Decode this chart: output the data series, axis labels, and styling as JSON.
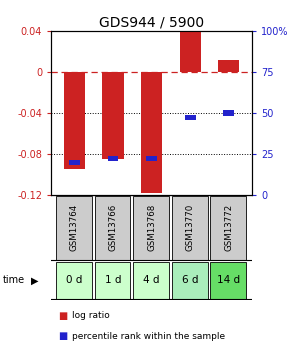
{
  "title": "GDS944 / 5900",
  "samples": [
    "GSM13764",
    "GSM13766",
    "GSM13768",
    "GSM13770",
    "GSM13772"
  ],
  "time_labels": [
    "0 d",
    "1 d",
    "4 d",
    "6 d",
    "14 d"
  ],
  "log_ratios": [
    -0.095,
    -0.085,
    -0.118,
    0.04,
    0.012
  ],
  "percentile_ranks": [
    20,
    22,
    22,
    47,
    50
  ],
  "ylim_left": [
    -0.12,
    0.04
  ],
  "ylim_right": [
    0,
    100
  ],
  "yticks_left": [
    0.04,
    0,
    -0.04,
    -0.08,
    -0.12
  ],
  "yticks_right": [
    100,
    75,
    50,
    25,
    0
  ],
  "bar_color": "#cc2222",
  "percentile_color": "#2222cc",
  "zero_line_color": "#cc2222",
  "grid_color": "#000000",
  "sample_bg": "#cccccc",
  "time_bg_colors": [
    "#ccffcc",
    "#ccffcc",
    "#ccffcc",
    "#aaeebb",
    "#66dd66"
  ],
  "legend_bar_color": "#cc2222",
  "legend_dot_color": "#2222cc",
  "title_fontsize": 10,
  "tick_fontsize": 7,
  "bar_width": 0.55,
  "time_arrow_label": "time"
}
